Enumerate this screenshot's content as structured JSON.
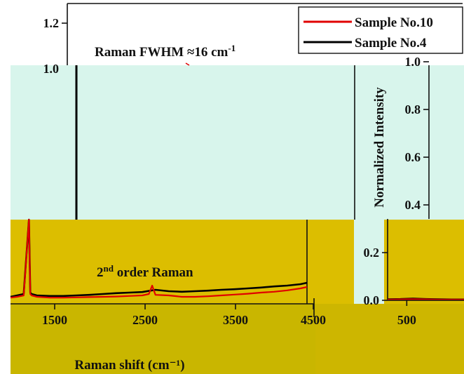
{
  "chart_data": [
    {
      "type": "line",
      "title": "",
      "xlabel": "Raman shift (cm⁻¹)",
      "ylabel": "",
      "xlim": [
        0,
        4500
      ],
      "ylim": [
        0,
        0.3
      ],
      "x_ticks": [
        "1500",
        "2500",
        "3500",
        "4500"
      ],
      "grid": false,
      "annotation": {
        "base": "2",
        "sup": "nd",
        "rest": " order Raman"
      },
      "series": [
        {
          "name": "",
          "color": "#000000",
          "x": [
            0,
            100,
            200,
            280,
            300,
            320,
            400,
            600,
            800,
            1000,
            1200,
            1400,
            1600,
            1800,
            2000,
            2200,
            2400,
            2600,
            2800,
            3000,
            3200,
            3400,
            3600,
            3800,
            4000,
            4200,
            4400,
            4500
          ],
          "y": [
            0.025,
            0.03,
            0.035,
            0.5,
            0.04,
            0.035,
            0.03,
            0.028,
            0.028,
            0.03,
            0.032,
            0.035,
            0.038,
            0.04,
            0.042,
            0.05,
            0.045,
            0.043,
            0.045,
            0.047,
            0.05,
            0.052,
            0.055,
            0.058,
            0.062,
            0.065,
            0.07,
            0.075
          ]
        },
        {
          "name": "",
          "color": "#e00000",
          "x": [
            0,
            100,
            200,
            280,
            300,
            320,
            400,
            600,
            800,
            1000,
            1200,
            1400,
            1600,
            1800,
            2000,
            2100,
            2150,
            2200,
            2400,
            2600,
            2800,
            3000,
            3200,
            3400,
            3600,
            3800,
            4000,
            4200,
            4400,
            4500
          ],
          "y": [
            0.022,
            0.025,
            0.03,
            0.5,
            0.035,
            0.03,
            0.025,
            0.022,
            0.022,
            0.023,
            0.024,
            0.025,
            0.026,
            0.028,
            0.03,
            0.035,
            0.065,
            0.032,
            0.03,
            0.025,
            0.025,
            0.027,
            0.03,
            0.033,
            0.036,
            0.04,
            0.043,
            0.048,
            0.055,
            0.06
          ]
        }
      ]
    },
    {
      "type": "line",
      "title": "",
      "xlabel": "",
      "ylabel": "Normalized Intensity",
      "xlim": [
        400,
        700
      ],
      "ylim": [
        0,
        1.0
      ],
      "x_ticks": [
        "500"
      ],
      "y_ticks": [
        "0.0",
        "0.2",
        "0.4",
        "0.6",
        "0.8",
        "1.0"
      ],
      "grid": false,
      "series": [
        {
          "name": "",
          "color": "#000000",
          "x": [
            400,
            450,
            500,
            550,
            600,
            650,
            700
          ],
          "y": [
            0.005,
            0.006,
            0.008,
            0.006,
            0.005,
            0.004,
            0.004
          ]
        },
        {
          "name": "",
          "color": "#e00000",
          "x": [
            400,
            450,
            500,
            550,
            600,
            650,
            700
          ],
          "y": [
            0.003,
            0.004,
            0.005,
            0.004,
            0.003,
            0.003,
            0.003
          ]
        }
      ]
    },
    {
      "type": "line",
      "title": "",
      "xlabel": "",
      "ylabel": "",
      "xlim": [
        0,
        1
      ],
      "ylim": [
        0,
        1.2
      ],
      "y_ticks": [
        "1.0",
        "1.2"
      ],
      "grid": false,
      "annotation": {
        "prefix": "Raman FWHM ≈16 cm",
        "sup": "-1"
      },
      "legend": {
        "placement": "top-right",
        "entries": [
          {
            "label": "Sample No.10",
            "color": "#e00000"
          },
          {
            "label": "Sample No.4",
            "color": "#000000"
          }
        ]
      },
      "series": [
        {
          "name": "Sample No.4",
          "color": "#000000",
          "x": [
            0,
            0.2,
            0.4,
            0.6,
            0.8,
            1.0
          ],
          "y": [
            1.0,
            1.0,
            1.0,
            1.0,
            1.0,
            1.0
          ]
        },
        {
          "name": "Sample No.10",
          "color": "#e00000",
          "x": [
            0,
            0.2,
            0.4,
            0.6,
            0.8,
            1.0
          ],
          "y": [
            1.0,
            1.0,
            1.0,
            1.0,
            1.0,
            1.0
          ]
        }
      ]
    }
  ],
  "colors": {
    "mint_panel": "#d8f5ec",
    "gold_panel": "#dcbe00",
    "olive_band": "#c9b600",
    "axis": "#111111"
  }
}
